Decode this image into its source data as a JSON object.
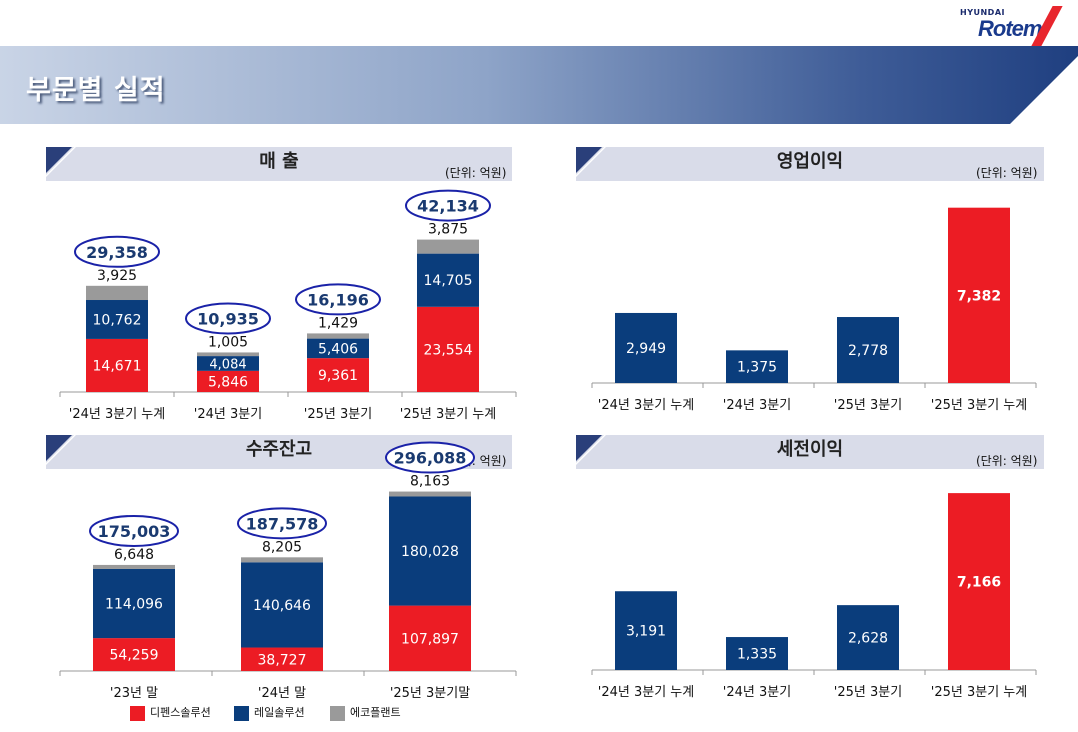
{
  "brand": {
    "line1": "HYUNDAI",
    "line2": "Rotem",
    "accent": "#e8262d",
    "navy": "#1a3a8c"
  },
  "page_title": "부문별 실적",
  "unit_label": "(단위: 억원)",
  "colors": {
    "defense": "#ec1c24",
    "rail": "#0a3d7c",
    "eco": "#9a9a9a",
    "circle": "#1a22a8"
  },
  "legend": [
    "디펜스솔루션",
    "레일솔루션",
    "에코플랜트"
  ],
  "panels": {
    "sales": {
      "title": "매 출"
    },
    "op": {
      "title": "영업이익"
    },
    "backlog": {
      "title": "수주잔고"
    },
    "pretax": {
      "title": "세전이익"
    }
  },
  "chart_data": [
    {
      "type": "bar",
      "stacked": true,
      "id": "sales",
      "title": "매 출",
      "categories": [
        "'24년 3분기 누계",
        "'24년 3분기",
        "'25년 3분기",
        "'25년 3분기 누계"
      ],
      "series": [
        {
          "name": "디펜스솔루션",
          "values": [
            14671,
            5846,
            9361,
            23554
          ]
        },
        {
          "name": "레일솔루션",
          "values": [
            10762,
            4084,
            5406,
            14705
          ]
        },
        {
          "name": "에코플랜트",
          "values": [
            3925,
            1005,
            1429,
            3875
          ]
        }
      ],
      "series_labels": [
        [
          "14,671",
          "5,846",
          "9,361",
          "23,554"
        ],
        [
          "10,762",
          "4,084",
          "5,406",
          "14,705"
        ],
        [
          "3,925",
          "1,005",
          "1,429",
          "3,875"
        ]
      ],
      "totals": [
        "29,358",
        "10,935",
        "16,196",
        "42,134"
      ],
      "ylim": [
        0,
        47000
      ]
    },
    {
      "type": "bar",
      "id": "op",
      "title": "영업이익",
      "categories": [
        "'24년 3분기 누계",
        "'24년 3분기",
        "'25년 3분기",
        "'25년 3분기 누계"
      ],
      "values": [
        2949,
        1375,
        2778,
        7382
      ],
      "labels": [
        "2,949",
        "1,375",
        "2,778",
        "7,382"
      ],
      "highlight_index": 3,
      "ylim": [
        0,
        8000
      ]
    },
    {
      "type": "bar",
      "stacked": true,
      "id": "backlog",
      "title": "수주잔고",
      "categories": [
        "'23년 말",
        "'24년 말",
        "'25년 3분기말"
      ],
      "series": [
        {
          "name": "디펜스솔루션",
          "values": [
            54259,
            38727,
            107897
          ]
        },
        {
          "name": "레일솔루션",
          "values": [
            114096,
            140646,
            180028
          ]
        },
        {
          "name": "에코플랜트",
          "values": [
            6648,
            8205,
            8163
          ]
        }
      ],
      "series_labels": [
        [
          "54,259",
          "38,727",
          "107,897"
        ],
        [
          "114,096",
          "140,646",
          "180,028"
        ],
        [
          "6,648",
          "8,205",
          "8,163"
        ]
      ],
      "totals": [
        "175,003",
        "187,578",
        "296,088"
      ],
      "ylim": [
        0,
        330000
      ]
    },
    {
      "type": "bar",
      "id": "pretax",
      "title": "세전이익",
      "categories": [
        "'24년 3분기 누계",
        "'24년 3분기",
        "'25년 3분기",
        "'25년 3분기 누계"
      ],
      "values": [
        3191,
        1335,
        2628,
        7166
      ],
      "labels": [
        "3,191",
        "1,335",
        "2,628",
        "7,166"
      ],
      "highlight_index": 3,
      "ylim": [
        0,
        7900
      ]
    }
  ]
}
